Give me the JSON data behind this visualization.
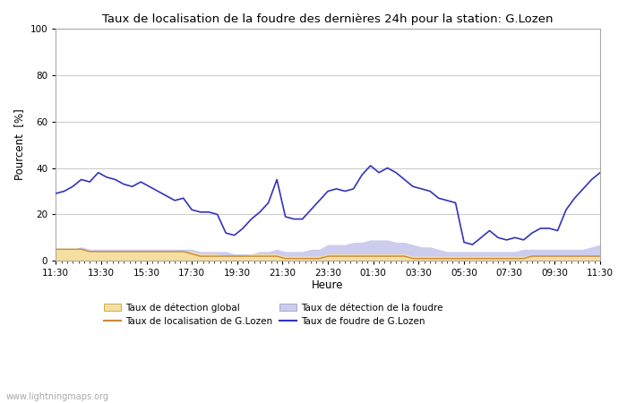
{
  "title": "Taux de localisation de la foudre des dernières 24h pour la station: G.Lozen",
  "ylabel": "Pourcent  [%]",
  "xlabel": "Heure",
  "xlim": [
    0,
    24
  ],
  "ylim": [
    0,
    100
  ],
  "yticks": [
    0,
    20,
    40,
    60,
    80,
    100
  ],
  "xtick_labels": [
    "11:30",
    "13:30",
    "15:30",
    "17:30",
    "19:30",
    "21:30",
    "23:30",
    "01:30",
    "03:30",
    "05:30",
    "07:30",
    "09:30",
    "11:30"
  ],
  "xtick_positions": [
    0,
    2,
    4,
    6,
    8,
    10,
    12,
    14,
    16,
    18,
    20,
    22,
    24
  ],
  "watermark": "www.lightningmaps.org",
  "bg_color": "#ffffff",
  "plot_bg_color": "#ffffff",
  "grid_color": "#cccccc",
  "color_blue_line": "#3333bb",
  "color_orange_line": "#cc8833",
  "color_fill_global": "#f5dfa0",
  "color_fill_foudre": "#ccccee",
  "legend_labels": [
    "Taux de détection global",
    "Taux de localisation de G.Lozen",
    "Taux de détection de la foudre",
    "Taux de foudre de G.Lozen"
  ],
  "blue_line": [
    29,
    30,
    32,
    35,
    34,
    38,
    36,
    35,
    33,
    32,
    34,
    32,
    30,
    28,
    26,
    27,
    22,
    21,
    21,
    20,
    12,
    11,
    14,
    18,
    21,
    25,
    35,
    19,
    18,
    18,
    22,
    26,
    30,
    31,
    30,
    31,
    37,
    41,
    38,
    40,
    38,
    35,
    32,
    31,
    30,
    27,
    26,
    25,
    8,
    7,
    10,
    13,
    10,
    9,
    10,
    9,
    12,
    14,
    14,
    13,
    22,
    27,
    31,
    35,
    38
  ],
  "orange_line": [
    5,
    5,
    5,
    5,
    4,
    4,
    4,
    4,
    4,
    4,
    4,
    4,
    4,
    4,
    4,
    4,
    3,
    2,
    2,
    2,
    2,
    2,
    2,
    2,
    2,
    2,
    2,
    1,
    1,
    1,
    1,
    1,
    2,
    2,
    2,
    2,
    2,
    2,
    2,
    2,
    2,
    2,
    1,
    1,
    1,
    1,
    1,
    1,
    1,
    1,
    1,
    1,
    1,
    1,
    1,
    1,
    2,
    2,
    2,
    2,
    2,
    2,
    2,
    2,
    2
  ],
  "fill_global": [
    5,
    5,
    5,
    5,
    4,
    4,
    4,
    4,
    4,
    4,
    4,
    4,
    4,
    4,
    4,
    4,
    4,
    3,
    3,
    3,
    2,
    2,
    2,
    3,
    3,
    3,
    3,
    2,
    2,
    2,
    2,
    2,
    3,
    3,
    3,
    3,
    3,
    3,
    3,
    3,
    3,
    3,
    2,
    2,
    2,
    2,
    2,
    2,
    2,
    2,
    2,
    2,
    2,
    2,
    2,
    2,
    2,
    2,
    2,
    2,
    2,
    2,
    2,
    2,
    2
  ],
  "fill_foudre": [
    5,
    5,
    5,
    6,
    5,
    5,
    5,
    5,
    5,
    5,
    5,
    5,
    5,
    5,
    5,
    5,
    5,
    4,
    4,
    4,
    4,
    3,
    3,
    3,
    4,
    4,
    5,
    4,
    4,
    4,
    5,
    5,
    7,
    7,
    7,
    8,
    8,
    9,
    9,
    9,
    8,
    8,
    7,
    6,
    6,
    5,
    4,
    4,
    4,
    4,
    4,
    4,
    4,
    4,
    4,
    5,
    5,
    5,
    5,
    5,
    5,
    5,
    5,
    6,
    7
  ]
}
